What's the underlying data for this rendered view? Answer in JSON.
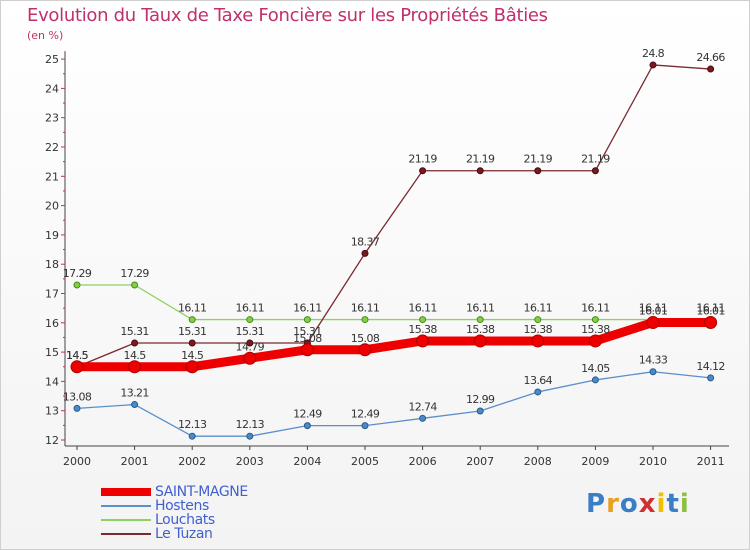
{
  "header": {
    "title": "Evolution du Taux de Taxe Foncière sur les Propriétés Bâties",
    "unit": "(en %)"
  },
  "logo": {
    "text": "Proxiti",
    "colors": [
      "#3a7ec8",
      "#e8a020",
      "#3a7ec8",
      "#d03030",
      "#f0c000",
      "#3a7ec8",
      "#8cc040"
    ]
  },
  "chart_data": {
    "type": "line",
    "title": "Evolution du Taux de Taxe Foncière sur les Propriétés Bâties",
    "ylabel": "(en %)",
    "xlabel": "",
    "categories": [
      "2000",
      "2001",
      "2002",
      "2003",
      "2004",
      "2005",
      "2006",
      "2007",
      "2008",
      "2009",
      "2010",
      "2011"
    ],
    "ylim": [
      12,
      25
    ],
    "yticks": [
      12,
      13,
      14,
      15,
      16,
      17,
      18,
      19,
      20,
      21,
      22,
      23,
      24,
      25
    ],
    "grid": false,
    "legend": "bottom-left",
    "series": [
      {
        "name": "Hostens",
        "color": "#5b8fc9",
        "values": [
          13.08,
          13.21,
          12.13,
          12.13,
          12.49,
          12.49,
          12.74,
          12.99,
          13.64,
          14.05,
          14.33,
          14.12
        ],
        "labels": [
          "13.08",
          "13.21",
          "12.13",
          "12.13",
          "12.49",
          "12.49",
          "12.74",
          "12.99",
          "13.64",
          "14.05",
          "14.33",
          "14.12"
        ]
      },
      {
        "name": "Louchats",
        "color": "#90d060",
        "values": [
          17.29,
          17.29,
          16.11,
          16.11,
          16.11,
          16.11,
          16.11,
          16.11,
          16.11,
          16.11,
          16.11,
          16.11
        ],
        "labels": [
          "17.29",
          "17.29",
          "16.11",
          "16.11",
          "16.11",
          "16.11",
          "16.11",
          "16.11",
          "16.11",
          "16.11",
          "16.11",
          "16.11"
        ]
      },
      {
        "name": "Le Tuzan",
        "color": "#7a2a30",
        "values": [
          14.5,
          15.31,
          15.31,
          15.31,
          15.31,
          18.37,
          21.19,
          21.19,
          21.19,
          21.19,
          24.8,
          24.66
        ],
        "labels": [
          "14.5",
          "15.31",
          "15.31",
          "15.31",
          "15.31",
          "18.37",
          "21.19",
          "21.19",
          "21.19",
          "21.19",
          "24.8",
          "24.66"
        ]
      },
      {
        "name": "SAINT-MAGNE",
        "color": "#ee0000",
        "values": [
          14.5,
          14.5,
          14.5,
          14.79,
          15.08,
          15.08,
          15.38,
          15.38,
          15.38,
          15.38,
          16.01,
          16.01
        ],
        "labels": [
          "14.5",
          "14.5",
          "14.5",
          "14.79",
          "15.08",
          "15.08",
          "15.38",
          "15.38",
          "15.38",
          "15.38",
          "16.01",
          "16.01"
        ]
      }
    ],
    "legend_order": [
      "SAINT-MAGNE",
      "Hostens",
      "Louchats",
      "Le Tuzan"
    ]
  }
}
